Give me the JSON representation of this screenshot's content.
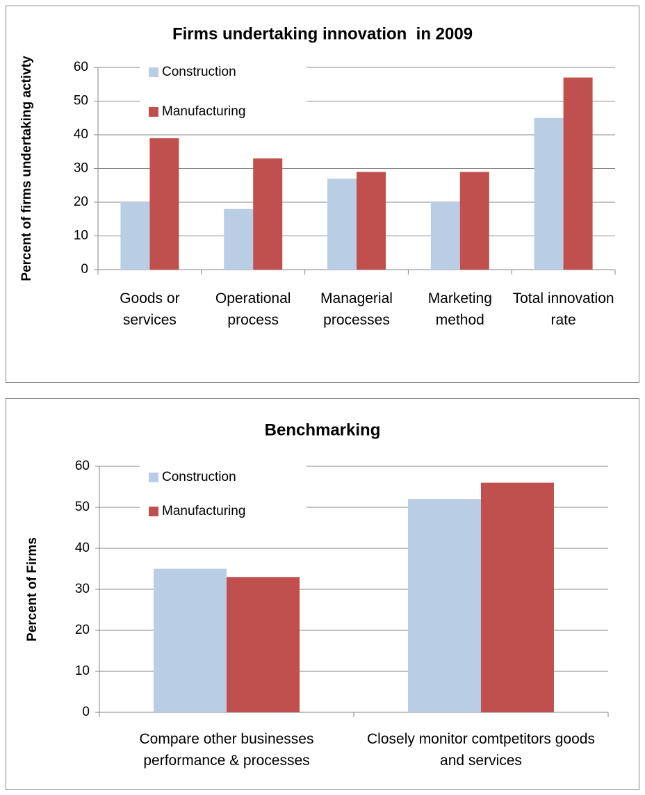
{
  "chart_data": [
    {
      "type": "bar",
      "title": "Firms undertaking innovation  in 2009",
      "y_label": "Percent of firms undertaking activty",
      "categories": [
        "Goods or services",
        "Operational process",
        "Managerial processes",
        "Marketing method",
        "Total innovation rate"
      ],
      "series": [
        {
          "name": "Construction",
          "color": "#b9cde5",
          "values": [
            20,
            18,
            27,
            20,
            45
          ]
        },
        {
          "name": "Manufacturing",
          "color": "#c0504d",
          "values": [
            39,
            33,
            29,
            29,
            57
          ]
        }
      ],
      "ylim": [
        0,
        60
      ],
      "yticks": [
        0,
        10,
        20,
        30,
        40,
        50,
        60
      ],
      "grid": true,
      "legend": "upper left"
    },
    {
      "type": "bar",
      "title": "Benchmarking",
      "y_label": "Percent of Firms",
      "categories": [
        "Compare other businesses performance & processes",
        "Closely monitor comtpetitors goods and services"
      ],
      "series": [
        {
          "name": "Construction",
          "color": "#b9cde5",
          "values": [
            35,
            52
          ]
        },
        {
          "name": "Manufacturing",
          "color": "#c0504d",
          "values": [
            33,
            56
          ]
        }
      ],
      "ylim": [
        0,
        60
      ],
      "yticks": [
        0,
        10,
        20,
        30,
        40,
        50,
        60
      ],
      "grid": true,
      "legend": "upper left"
    }
  ]
}
